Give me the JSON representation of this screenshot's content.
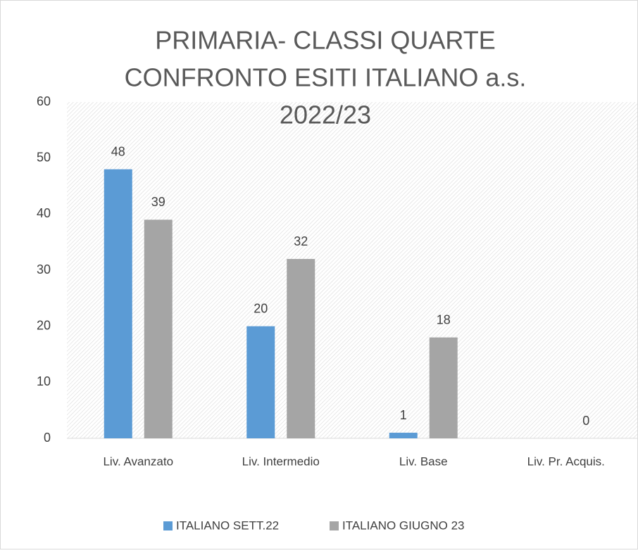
{
  "chart_data": {
    "type": "bar",
    "title": [
      "PRIMARIA- CLASSI  QUARTE",
      "CONFRONTO ESITI ITALIANO  a.s.",
      "2022/23"
    ],
    "categories": [
      "Liv. Avanzato",
      "Liv.  Intermedio",
      "Liv. Base",
      "Liv. Pr. Acquis."
    ],
    "series": [
      {
        "name": "ITALIANO SETT.22",
        "color": "#5b9bd5",
        "values": [
          48,
          20,
          1,
          null
        ]
      },
      {
        "name": "ITALIANO GIUGNO 23",
        "color": "#a5a5a5",
        "values": [
          39,
          32,
          18,
          0
        ]
      }
    ],
    "ylim": [
      0,
      60
    ],
    "yticks": [
      0,
      10,
      20,
      30,
      40,
      50,
      60
    ],
    "legend": "bottom"
  }
}
